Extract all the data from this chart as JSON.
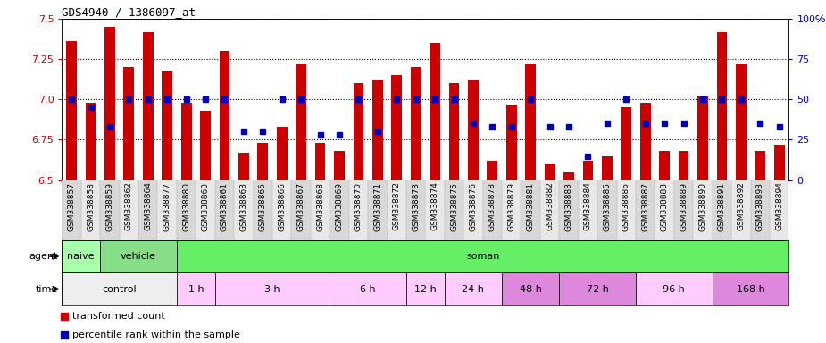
{
  "title": "GDS4940 / 1386097_at",
  "samples": [
    "GSM338857",
    "GSM338858",
    "GSM338859",
    "GSM338862",
    "GSM338864",
    "GSM338877",
    "GSM338880",
    "GSM338860",
    "GSM338861",
    "GSM338863",
    "GSM338865",
    "GSM338866",
    "GSM338867",
    "GSM338868",
    "GSM338869",
    "GSM338870",
    "GSM338871",
    "GSM338872",
    "GSM338873",
    "GSM338874",
    "GSM338875",
    "GSM338876",
    "GSM338878",
    "GSM338879",
    "GSM338881",
    "GSM338882",
    "GSM338883",
    "GSM338884",
    "GSM338885",
    "GSM338886",
    "GSM338887",
    "GSM338888",
    "GSM338889",
    "GSM338890",
    "GSM338891",
    "GSM338892",
    "GSM338893",
    "GSM338894"
  ],
  "bar_values": [
    7.36,
    6.98,
    7.45,
    7.2,
    7.42,
    7.18,
    6.98,
    6.93,
    7.3,
    6.67,
    6.73,
    6.83,
    7.22,
    6.73,
    6.68,
    7.1,
    7.12,
    7.15,
    7.2,
    7.35,
    7.1,
    7.12,
    6.62,
    6.97,
    7.22,
    6.6,
    6.55,
    6.62,
    6.65,
    6.95,
    6.98,
    6.68,
    6.68,
    7.02,
    7.42,
    7.22,
    6.68,
    6.72
  ],
  "percentile_values": [
    50,
    45,
    33,
    50,
    50,
    50,
    50,
    50,
    50,
    30,
    30,
    50,
    50,
    28,
    28,
    50,
    30,
    50,
    50,
    50,
    50,
    35,
    33,
    33,
    50,
    33,
    33,
    15,
    35,
    50,
    35,
    35,
    35,
    50,
    50,
    50,
    35,
    33
  ],
  "ylim_left": [
    6.5,
    7.5
  ],
  "ylim_right": [
    0,
    100
  ],
  "yticks_left": [
    6.5,
    6.75,
    7.0,
    7.25,
    7.5
  ],
  "yticks_right": [
    0,
    25,
    50,
    75,
    100
  ],
  "bar_color": "#cc0000",
  "square_color": "#0000bb",
  "bar_bottom": 6.5,
  "agent_data": [
    {
      "label": "naive",
      "start": 0,
      "end": 2,
      "color": "#aaffaa"
    },
    {
      "label": "vehicle",
      "start": 2,
      "end": 6,
      "color": "#88dd88"
    },
    {
      "label": "soman",
      "start": 6,
      "end": 38,
      "color": "#66ee66"
    }
  ],
  "time_data": [
    {
      "label": "control",
      "start": 0,
      "end": 6,
      "color": "#eeeeee"
    },
    {
      "label": "1 h",
      "start": 6,
      "end": 8,
      "color": "#ffccff"
    },
    {
      "label": "3 h",
      "start": 8,
      "end": 14,
      "color": "#ffccff"
    },
    {
      "label": "6 h",
      "start": 14,
      "end": 18,
      "color": "#ffccff"
    },
    {
      "label": "12 h",
      "start": 18,
      "end": 20,
      "color": "#ffccff"
    },
    {
      "label": "24 h",
      "start": 20,
      "end": 23,
      "color": "#ffccff"
    },
    {
      "label": "48 h",
      "start": 23,
      "end": 26,
      "color": "#dd88dd"
    },
    {
      "label": "72 h",
      "start": 26,
      "end": 30,
      "color": "#dd88dd"
    },
    {
      "label": "96 h",
      "start": 30,
      "end": 34,
      "color": "#ffccff"
    },
    {
      "label": "168 h",
      "start": 34,
      "end": 38,
      "color": "#dd88dd"
    }
  ],
  "legend_items": [
    {
      "label": "transformed count",
      "color": "#cc0000"
    },
    {
      "label": "percentile rank within the sample",
      "color": "#0000bb"
    }
  ]
}
